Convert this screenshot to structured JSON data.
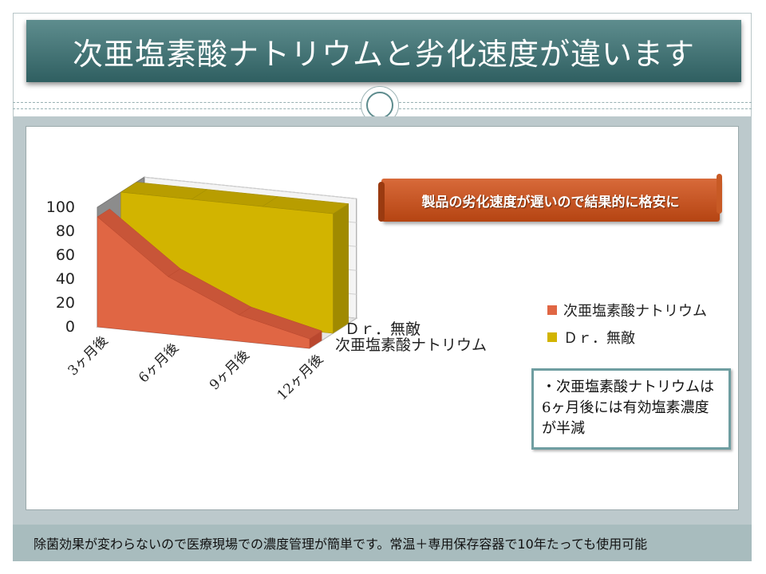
{
  "slide": {
    "title": "次亜塩素酸ナトリウムと劣化速度が違います",
    "banner": "製品の劣化速度が遅いので結果的に格安に",
    "note": "・次亜塩素酸ナトリウムは6ヶ月後には有効塩素濃度が半減",
    "footer": "除菌効果が変わらないので医療現場での濃度管理が簡単です。常温＋専用保存容器で10年たっても使用可能"
  },
  "colors": {
    "accent": "#2f5f61",
    "band": "#bcc9cc",
    "banner": "#c4521f",
    "series_sodium": "#e06644",
    "series_dr": "#d2b400"
  },
  "chart_data": {
    "type": "area",
    "style": "3d",
    "categories": [
      "3ヶ月後",
      "6ヶ月後",
      "9ヶ月後",
      "12ヶ月後"
    ],
    "series": [
      {
        "name": "次亜塩素酸ナトリウム",
        "values": [
          92,
          48,
          22,
          8
        ],
        "color": "#e06644"
      },
      {
        "name": "Ｄｒ．無敵",
        "values": [
          100,
          100,
          100,
          100
        ],
        "color": "#d2b400"
      }
    ],
    "ylim": [
      0,
      100
    ],
    "yticks": [
      0,
      20,
      40,
      60,
      80,
      100
    ],
    "series_axis_labels": [
      "Ｄｒ．無敵",
      "次亜塩素酸ナトリウム"
    ],
    "legend": [
      "次亜塩素酸ナトリウム",
      "Ｄｒ．無敵"
    ],
    "legend_position": "right"
  }
}
